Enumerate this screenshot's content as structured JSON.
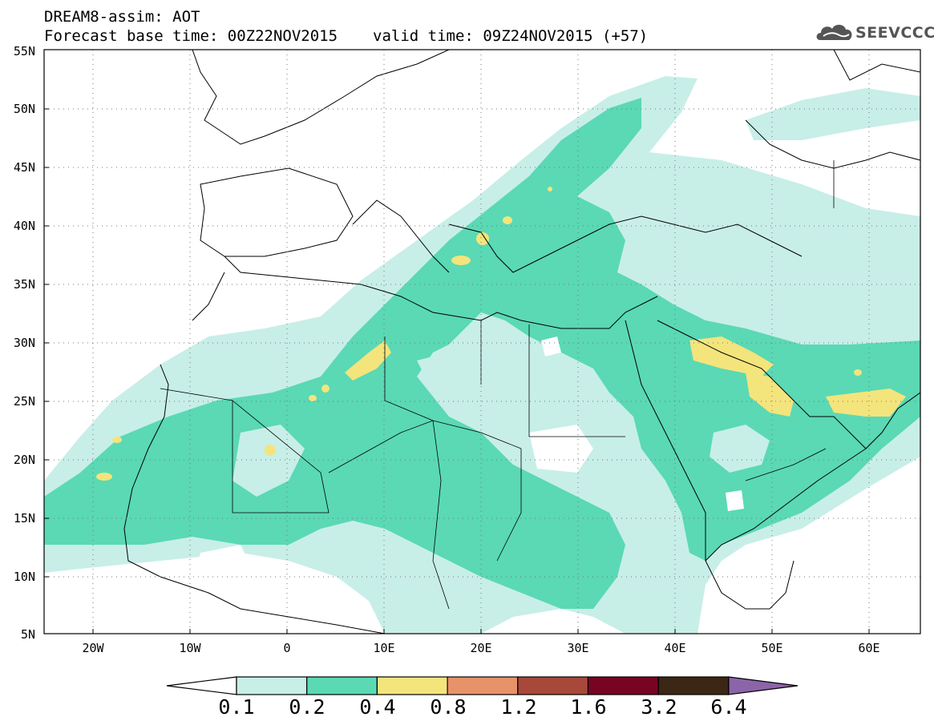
{
  "title": {
    "line1": "DREAM8-assim: AOT",
    "base": "Forecast base time: 00Z22NOV2015",
    "valid": "valid time: 09Z24NOV2015 (+57)"
  },
  "logo": {
    "text": "SEEVCCC",
    "icon": "cloud-icon"
  },
  "map": {
    "lon_range": [
      -25,
      65
    ],
    "lat_range": [
      5,
      55
    ],
    "grid": "dotted",
    "lat_labels": [
      "55N",
      "50N",
      "45N",
      "40N",
      "35N",
      "30N",
      "25N",
      "20N",
      "15N",
      "10N",
      "5N"
    ],
    "lon_labels": [
      "20W",
      "10W",
      "0",
      "10E",
      "20E",
      "30E",
      "40E",
      "50E",
      "60E"
    ]
  },
  "colorbar": {
    "labels": [
      "0.1",
      "0.2",
      "0.4",
      "0.8",
      "1.2",
      "1.6",
      "3.2",
      "6.4"
    ],
    "colors": [
      "#ffffff",
      "#c8eee8",
      "#5ad9b4",
      "#f4e47c",
      "#e8926a",
      "#a8483a",
      "#780424",
      "#3c2614",
      "#8c64a8"
    ]
  }
}
